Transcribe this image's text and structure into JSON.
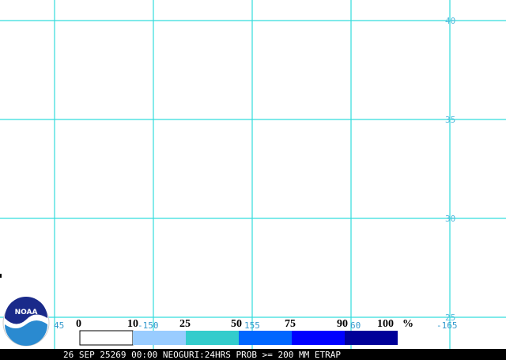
{
  "grid": {
    "lat_labels": [
      "40",
      "35",
      "30",
      "25"
    ],
    "lon_labels": [
      "45",
      "-150",
      "155",
      "60",
      "-165"
    ]
  },
  "legend": {
    "labels": [
      "0",
      "10",
      "25",
      "50",
      "75",
      "90",
      "100"
    ],
    "unit": "%"
  },
  "footer": {
    "text": "26 SEP 25269 00:00 NEOGURI:24HRS PROB >= 200 MM ETRAP"
  }
}
